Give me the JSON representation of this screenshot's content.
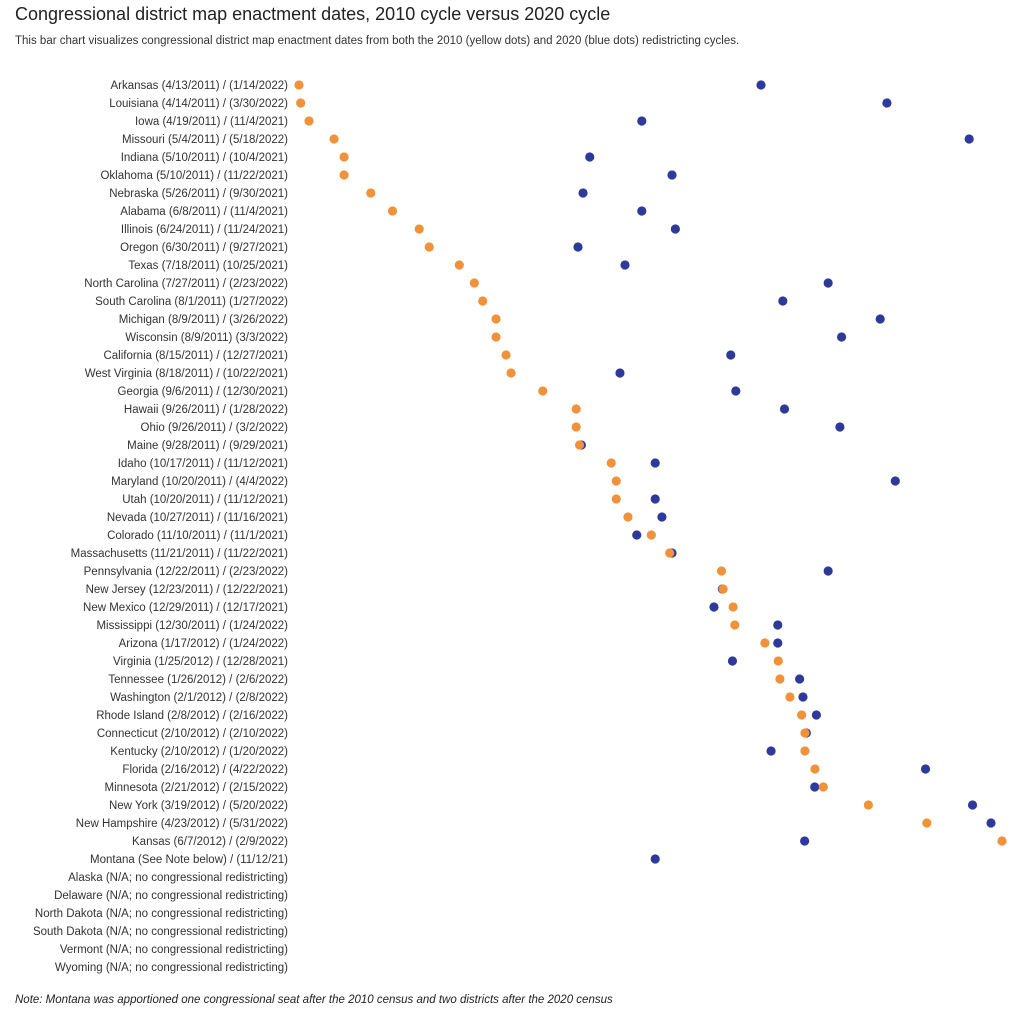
{
  "chart_data": {
    "type": "scatter",
    "title": "Congressional district map enactment dates, 2010 cycle versus 2020 cycle",
    "subtitle": "This bar chart visualizes congressional district map enactment dates from both the 2010 (yellow dots) and 2020 (blue dots) redistricting cycles.",
    "note": "Note: Montana was apportioned one congressional seat after the 2010 census and two districts after the 2020 census",
    "series": [
      {
        "name": "2010 cycle",
        "color": "#F0923A",
        "axis_start": "2011-04-13",
        "axis_end": "2012-06-07"
      },
      {
        "name": "2020 cycle",
        "color": "#2E3A9A",
        "axis_start": "2021-09-27",
        "axis_end": "2022-05-31"
      }
    ],
    "rows": [
      {
        "label": "Arkansas (4/13/2011) / (1/14/2022)",
        "d2010": "2011-04-13",
        "d2020": "2022-01-14"
      },
      {
        "label": "Louisiana (4/14/2011) / (3/30/2022)",
        "d2010": "2011-04-14",
        "d2020": "2022-03-30"
      },
      {
        "label": "Iowa (4/19/2011) / (11/4/2021)",
        "d2010": "2011-04-19",
        "d2020": "2021-11-04"
      },
      {
        "label": "Missouri (5/4/2011) / (5/18/2022)",
        "d2010": "2011-05-04",
        "d2020": "2022-05-18"
      },
      {
        "label": "Indiana (5/10/2011) / (10/4/2021)",
        "d2010": "2011-05-10",
        "d2020": "2021-10-04"
      },
      {
        "label": "Oklahoma (5/10/2011) / (11/22/2021)",
        "d2010": "2011-05-10",
        "d2020": "2021-11-22"
      },
      {
        "label": "Nebraska (5/26/2011) / (9/30/2021)",
        "d2010": "2011-05-26",
        "d2020": "2021-09-30"
      },
      {
        "label": "Alabama (6/8/2011) / (11/4/2021)",
        "d2010": "2011-06-08",
        "d2020": "2021-11-04"
      },
      {
        "label": "Illinois (6/24/2011) / (11/24/2021)",
        "d2010": "2011-06-24",
        "d2020": "2021-11-24"
      },
      {
        "label": "Oregon (6/30/2011) / (9/27/2021)",
        "d2010": "2011-06-30",
        "d2020": "2021-09-27"
      },
      {
        "label": "Texas (7/18/2011) (10/25/2021)",
        "d2010": "2011-07-18",
        "d2020": "2021-10-25"
      },
      {
        "label": "North Carolina (7/27/2011) / (2/23/2022)",
        "d2010": "2011-07-27",
        "d2020": "2022-02-23"
      },
      {
        "label": "South Carolina (8/1/2011) (1/27/2022)",
        "d2010": "2011-08-01",
        "d2020": "2022-01-27"
      },
      {
        "label": "Michigan (8/9/2011) / (3/26/2022)",
        "d2010": "2011-08-09",
        "d2020": "2022-03-26"
      },
      {
        "label": "Wisconsin (8/9/2011) (3/3/2022)",
        "d2010": "2011-08-09",
        "d2020": "2022-03-03"
      },
      {
        "label": "California (8/15/2011) / (12/27/2021)",
        "d2010": "2011-08-15",
        "d2020": "2021-12-27"
      },
      {
        "label": "West Virginia (8/18/2011) / (10/22/2021)",
        "d2010": "2011-08-18",
        "d2020": "2021-10-22"
      },
      {
        "label": "Georgia (9/6/2011) / (12/30/2021)",
        "d2010": "2011-09-06",
        "d2020": "2021-12-30"
      },
      {
        "label": "Hawaii (9/26/2011) / (1/28/2022)",
        "d2010": "2011-09-26",
        "d2020": "2022-01-28"
      },
      {
        "label": "Ohio (9/26/2011) / (3/2/2022)",
        "d2010": "2011-09-26",
        "d2020": "2022-03-02"
      },
      {
        "label": "Maine (9/28/2011) / (9/29/2021)",
        "d2010": "2011-09-28",
        "d2020": "2021-09-29"
      },
      {
        "label": "Idaho (10/17/2011) / (11/12/2021)",
        "d2010": "2011-10-17",
        "d2020": "2021-11-12"
      },
      {
        "label": "Maryland (10/20/2011) / (4/4/2022)",
        "d2010": "2011-10-20",
        "d2020": "2022-04-04"
      },
      {
        "label": "Utah (10/20/2011) / (11/12/2021)",
        "d2010": "2011-10-20",
        "d2020": "2021-11-12"
      },
      {
        "label": "Nevada (10/27/2011) / (11/16/2021)",
        "d2010": "2011-10-27",
        "d2020": "2021-11-16"
      },
      {
        "label": "Colorado (11/10/2011) / (11/1/2021)",
        "d2010": "2011-11-10",
        "d2020": "2021-11-01"
      },
      {
        "label": "Massachusetts (11/21/2011) / (11/22/2021)",
        "d2010": "2011-11-21",
        "d2020": "2021-11-22"
      },
      {
        "label": "Pennsylvania (12/22/2011) / (2/23/2022)",
        "d2010": "2011-12-22",
        "d2020": "2022-02-23"
      },
      {
        "label": "New Jersey (12/23/2011) / (12/22/2021)",
        "d2010": "2011-12-23",
        "d2020": "2021-12-22"
      },
      {
        "label": "New Mexico (12/29/2011) / (12/17/2021)",
        "d2010": "2011-12-29",
        "d2020": "2021-12-17"
      },
      {
        "label": "Mississippi (12/30/2011) / (1/24/2022)",
        "d2010": "2011-12-30",
        "d2020": "2022-01-24"
      },
      {
        "label": "Arizona (1/17/2012) / (1/24/2022)",
        "d2010": "2012-01-17",
        "d2020": "2022-01-24"
      },
      {
        "label": "Virginia (1/25/2012) / (12/28/2021)",
        "d2010": "2012-01-25",
        "d2020": "2021-12-28"
      },
      {
        "label": "Tennessee (1/26/2012) / (2/6/2022)",
        "d2010": "2012-01-26",
        "d2020": "2022-02-06"
      },
      {
        "label": "Washington (2/1/2012) / (2/8/2022)",
        "d2010": "2012-02-01",
        "d2020": "2022-02-08"
      },
      {
        "label": "Rhode Island (2/8/2012) / (2/16/2022)",
        "d2010": "2012-02-08",
        "d2020": "2022-02-16"
      },
      {
        "label": "Connecticut (2/10/2012) / (2/10/2022)",
        "d2010": "2012-02-10",
        "d2020": "2022-02-10"
      },
      {
        "label": "Kentucky (2/10/2012) / (1/20/2022)",
        "d2010": "2012-02-10",
        "d2020": "2022-01-20"
      },
      {
        "label": "Florida (2/16/2012) / (4/22/2022)",
        "d2010": "2012-02-16",
        "d2020": "2022-04-22"
      },
      {
        "label": "Minnesota (2/21/2012) / (2/15/2022)",
        "d2010": "2012-02-21",
        "d2020": "2022-02-15"
      },
      {
        "label": "New York (3/19/2012) / (5/20/2022)",
        "d2010": "2012-03-19",
        "d2020": "2022-05-20"
      },
      {
        "label": "New Hampshire (4/23/2012) / (5/31/2022)",
        "d2010": "2012-04-23",
        "d2020": "2022-05-31"
      },
      {
        "label": "Kansas (6/7/2012) / (2/9/2022)",
        "d2010": "2012-06-07",
        "d2020": "2022-02-09"
      },
      {
        "label": "Montana (See Note below) / (11/12/21)",
        "d2010": null,
        "d2020": "2021-11-12"
      },
      {
        "label": "Alaska (N/A; no congressional redistricting)",
        "d2010": null,
        "d2020": null
      },
      {
        "label": "Delaware (N/A; no congressional redistricting)",
        "d2010": null,
        "d2020": null
      },
      {
        "label": "North Dakota (N/A; no congressional redistricting)",
        "d2010": null,
        "d2020": null
      },
      {
        "label": "South Dakota (N/A; no congressional redistricting)",
        "d2010": null,
        "d2020": null
      },
      {
        "label": "Vermont (N/A; no congressional redistricting)",
        "d2010": null,
        "d2020": null
      },
      {
        "label": "Wyoming (N/A; no congressional redistricting)",
        "d2010": null,
        "d2020": null
      }
    ]
  }
}
